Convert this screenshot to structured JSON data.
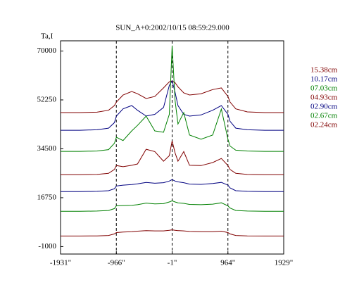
{
  "chart_data": {
    "type": "line",
    "title": "SUN_A+0:2002/10/15 08:59:29.000",
    "y_label": "Ta,I",
    "x": [
      -1931,
      -1600,
      -1300,
      -1100,
      -1000,
      -966,
      -850,
      -700,
      -600,
      -450,
      -300,
      -150,
      -50,
      -1,
      50,
      100,
      200,
      300,
      500,
      700,
      850,
      964,
      1000,
      1100,
      1300,
      1600,
      1929
    ],
    "series": [
      {
        "name": "15.38cm",
        "color": "#800000",
        "values": [
          47640,
          47640,
          47800,
          48500,
          50200,
          51480,
          54000,
          55320,
          54500,
          52760,
          53500,
          56600,
          58800,
          59160,
          58500,
          57000,
          54800,
          54040,
          54500,
          56000,
          56600,
          53500,
          51500,
          49000,
          47900,
          47640,
          47640
        ]
      },
      {
        "name": "10.17cm",
        "color": "#000080",
        "values": [
          41240,
          41240,
          41400,
          42000,
          44000,
          46360,
          49000,
          50200,
          48500,
          46400,
          47000,
          49500,
          57500,
          59160,
          55000,
          50200,
          47000,
          46360,
          46800,
          48500,
          50200,
          47000,
          44500,
          42000,
          41400,
          41240,
          41240
        ]
      },
      {
        "name": "07.03cm",
        "color": "#008000",
        "values": [
          33560,
          33560,
          33700,
          34200,
          36500,
          38680,
          37500,
          41000,
          43000,
          46360,
          41000,
          40500,
          47000,
          71960,
          52000,
          43500,
          47640,
          39500,
          38000,
          39500,
          48920,
          38000,
          35500,
          34000,
          33700,
          33560,
          33560
        ]
      },
      {
        "name": "04.93cm",
        "color": "#800000",
        "values": [
          25110,
          25110,
          25200,
          25600,
          27000,
          28440,
          28000,
          28500,
          29000,
          34330,
          33500,
          30000,
          32000,
          37400,
          33000,
          30000,
          33500,
          28500,
          28400,
          29500,
          31000,
          28400,
          27000,
          25600,
          25200,
          25110,
          25110
        ]
      },
      {
        "name": "02.90cm",
        "color": "#000080",
        "values": [
          18970,
          18970,
          19050,
          19300,
          20000,
          21000,
          21300,
          21500,
          21800,
          22300,
          22000,
          22200,
          22800,
          23320,
          22800,
          22500,
          22200,
          21700,
          21600,
          21900,
          22300,
          21300,
          20300,
          19300,
          19050,
          18970,
          18970
        ]
      },
      {
        "name": "02.67cm",
        "color": "#008000",
        "values": [
          11800,
          11800,
          11900,
          12100,
          12800,
          13800,
          13900,
          14000,
          14200,
          14800,
          14500,
          14600,
          15200,
          15600,
          15200,
          14900,
          14700,
          14300,
          14200,
          14400,
          14900,
          13800,
          13000,
          12100,
          11900,
          11800,
          11800
        ]
      },
      {
        "name": "02.24cm",
        "color": "#800000",
        "values": [
          2840,
          2840,
          2900,
          3050,
          3600,
          4100,
          4300,
          4400,
          4600,
          4800,
          4700,
          4700,
          4900,
          5100,
          4900,
          4800,
          4700,
          4500,
          4400,
          4400,
          4600,
          4100,
          3600,
          3050,
          2900,
          2840,
          2840
        ]
      }
    ],
    "xlim": [
      -1931,
      1929
    ],
    "ylim": [
      -3700,
      73700
    ],
    "xticks": [
      {
        "value": -1931,
        "label": "-1931\""
      },
      {
        "value": -966,
        "label": "-966\""
      },
      {
        "value": -1,
        "label": "-1\""
      },
      {
        "value": 964,
        "label": "964\""
      },
      {
        "value": 1929,
        "label": "1929\""
      }
    ],
    "yticks": [
      70000,
      52250,
      34500,
      16750,
      -1000
    ],
    "vlines": [
      -966,
      -1,
      964
    ]
  }
}
